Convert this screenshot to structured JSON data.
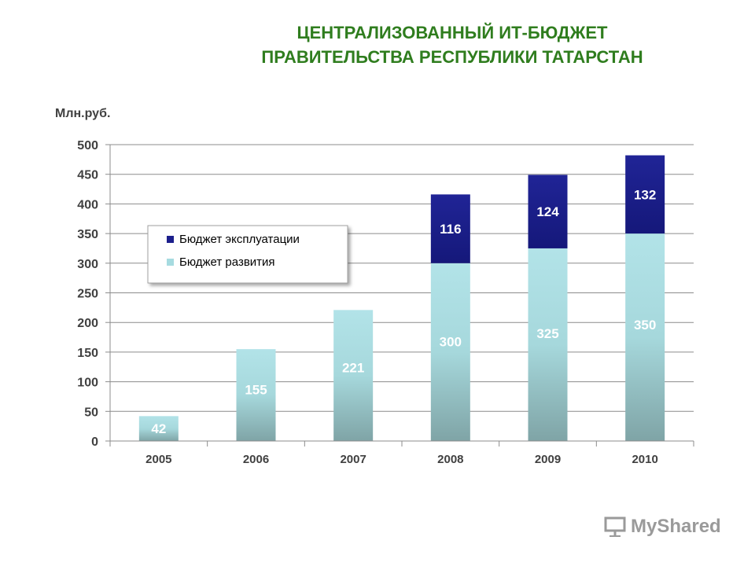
{
  "chart_data": {
    "type": "bar",
    "stacked": true,
    "title_lines": [
      "ЦЕНТРАЛИЗОВАННЫЙ ИТ-БЮДЖЕТ",
      "ПРАВИТЕЛЬСТВА РЕСПУБЛИКИ ТАТАРСТАН"
    ],
    "ylabel": "Млн.руб.",
    "xlabel": "",
    "categories": [
      "2005",
      "2006",
      "2007",
      "2008",
      "2009",
      "2010"
    ],
    "series": [
      {
        "name": "Бюджет развития",
        "values": [
          42,
          155,
          221,
          300,
          325,
          350
        ],
        "color": "#a6dbe0"
      },
      {
        "name": "Бюджет эксплуатации",
        "values": [
          0,
          0,
          0,
          116,
          124,
          132
        ],
        "color": "#1c1f8c"
      }
    ],
    "value_labels": {
      "Бюджет развития": [
        "42",
        "155",
        "221",
        "300",
        "325",
        "350"
      ],
      "Бюджет эксплуатации": [
        "",
        "",
        "",
        "116",
        "124",
        "132"
      ]
    },
    "ylim": [
      0,
      500
    ],
    "yticks": [
      "0",
      "50",
      "100",
      "150",
      "200",
      "250",
      "300",
      "350",
      "400",
      "450",
      "500"
    ],
    "grid": true,
    "legend_position": "upper-left inside plot"
  },
  "watermark": {
    "text": "MyShared",
    "icon": "presentation-icon"
  }
}
